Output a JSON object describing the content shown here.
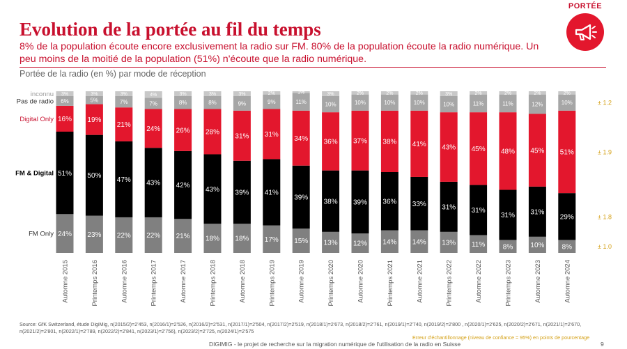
{
  "header": {
    "title": "Evolution de la portée au fil du temps",
    "subtitle": "8% de la population écoute encore exclusivement la radio sur FM. 80% de la population écoute la radio numérique. Un peu moins de la moitié de la population (51%) n'écoute que la radio numérique.",
    "badge_label": "PORTÉE",
    "badge_icon": "megaphone-icon",
    "accent_color": "#c8102e"
  },
  "chart_data": {
    "type": "bar",
    "stacked": true,
    "title": "Portée de la radio (en %) par mode de réception",
    "categories": [
      "Automne 2015",
      "Printemps 2016",
      "Automne 2016",
      "Printemps 2017",
      "Automne 2017",
      "Printemps 2018",
      "Automne 2018",
      "Printemps 2019",
      "Automne 2019",
      "Printemps 2020",
      "Automne 2020",
      "Printemps 2021",
      "Automne 2021",
      "Printemps 2022",
      "Automne 2022",
      "Printemps 2023",
      "Automne 2023",
      "Automne 2024"
    ],
    "series": [
      {
        "name": "FM Only",
        "color": "#808080",
        "values": [
          24,
          23,
          22,
          22,
          21,
          18,
          18,
          17,
          15,
          13,
          12,
          14,
          14,
          13,
          11,
          8,
          10,
          8
        ]
      },
      {
        "name": "FM & Digital",
        "color": "#000000",
        "values": [
          51,
          50,
          47,
          43,
          42,
          43,
          39,
          41,
          39,
          38,
          39,
          36,
          33,
          31,
          31,
          31,
          31,
          29
        ]
      },
      {
        "name": "Digital Only",
        "color": "#e3172d",
        "values": [
          16,
          19,
          21,
          24,
          26,
          28,
          31,
          31,
          34,
          36,
          37,
          38,
          41,
          43,
          45,
          48,
          45,
          51
        ]
      },
      {
        "name": "Pas de radio",
        "color": "#a6a6a6",
        "values": [
          6,
          5,
          7,
          7,
          8,
          8,
          9,
          9,
          11,
          10,
          10,
          10,
          10,
          10,
          11,
          11,
          12,
          10
        ]
      },
      {
        "name": "inconnu",
        "color": "#c8c8c8",
        "values": [
          3,
          3,
          3,
          4,
          3,
          3,
          3,
          2,
          1,
          3,
          2,
          2,
          2,
          3,
          2,
          2,
          2,
          2
        ]
      }
    ],
    "ylim": [
      0,
      100
    ],
    "grid": false,
    "legend": "left",
    "error_margins": [
      {
        "series": "Pas de radio",
        "label": "± 1.2"
      },
      {
        "series": "Digital Only",
        "label": "± 1.9"
      },
      {
        "series": "FM & Digital",
        "label": "± 1.8"
      },
      {
        "series": "FM Only",
        "label": "± 1.0"
      }
    ],
    "error_margin_color": "#d4a016",
    "error_note": "Erreur d'échantillonnage (niveau de confiance = 95%) en points de pourcentage"
  },
  "source": "Source: GfK Switzerland, étude DigiMig, n(2015/2)=2'453, n(2016/1)=2'526, n(2016/2)=2'531, n(2017/1)=2'504, n(2017/2)=2'519, n(2018/1)=2'673, n(2018/2)=2'761, n(2019/1)=2'740, n(2019/2)=2'800 , n(2020/1)=2'625, n(2020/2)=2'671, n(2021/1)=2'670, n(2021/2)=2'801, n(2022/1)=2'789, n(2022/2)=2'841, n(2023/1)=2'756), n(2023/2)=2'725, n(2024/1)=2'575",
  "footer": {
    "text": "DIGIMIG - le projet de recherche sur la migration numérique de l'utilisation de la radio en Suisse",
    "page_number": "9"
  }
}
